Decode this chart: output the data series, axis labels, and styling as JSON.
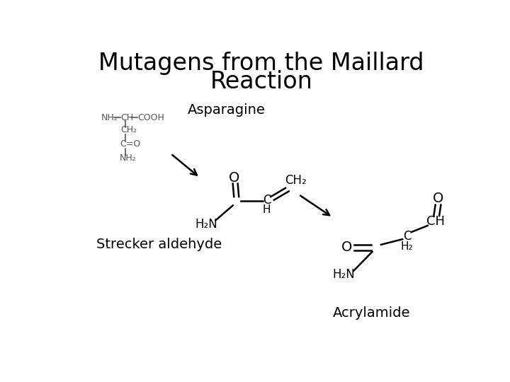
{
  "title_line1": "Mutagens from the Maillard",
  "title_line2": "Reaction",
  "title_fontsize": 24,
  "background_color": "#ffffff",
  "label_asparagine": "Asparagine",
  "label_strecker": "Strecker aldehyde",
  "label_acrylamide": "Acrylamide",
  "label_fontsize": 14,
  "chem_fontsize": 11,
  "struct_color": "#000000",
  "asn_color": "#555555"
}
